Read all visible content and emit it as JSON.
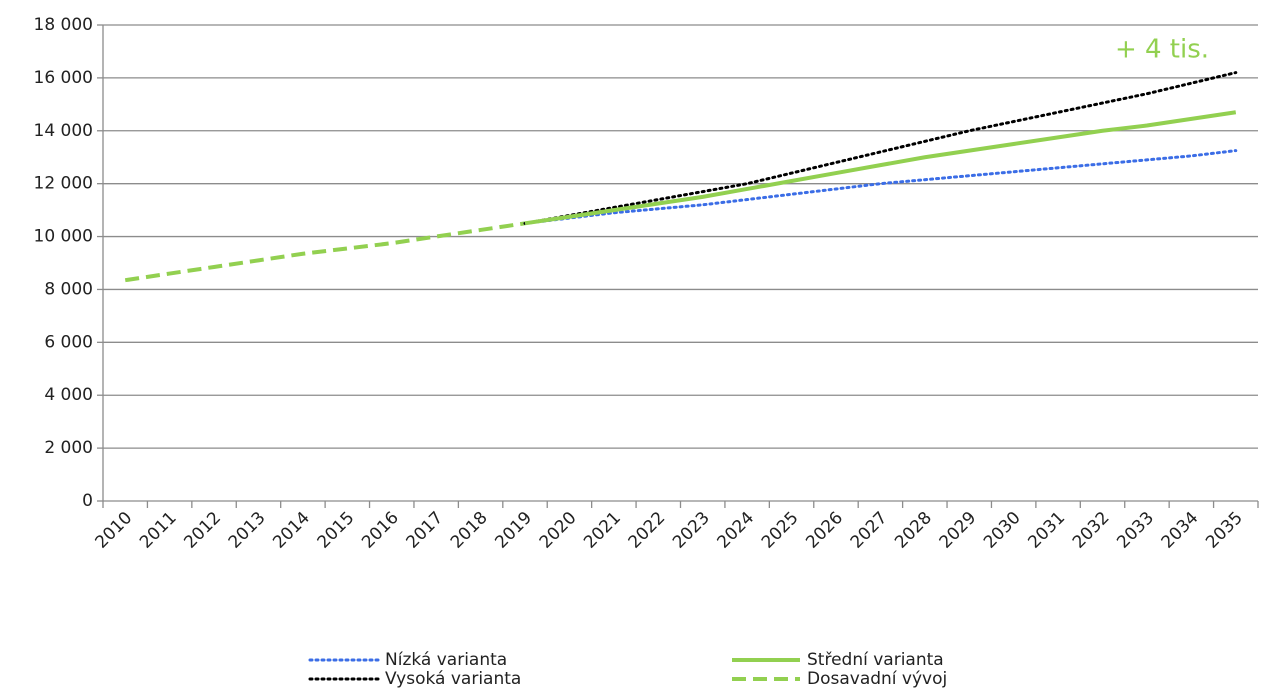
{
  "chart_data": {
    "type": "line",
    "categories": [
      "2010",
      "2011",
      "2012",
      "2013",
      "2014",
      "2015",
      "2016",
      "2017",
      "2018",
      "2019",
      "2020",
      "2021",
      "2022",
      "2023",
      "2024",
      "2025",
      "2026",
      "2027",
      "2028",
      "2029",
      "2030",
      "2031",
      "2032",
      "2033",
      "2034",
      "2035"
    ],
    "series": [
      {
        "name": "Nízká varianta",
        "color": "#3b6de6",
        "style": "dotted",
        "values": [
          null,
          null,
          null,
          null,
          null,
          null,
          null,
          null,
          null,
          10500,
          10700,
          10900,
          11050,
          11200,
          11400,
          11600,
          11800,
          12000,
          12150,
          12300,
          12450,
          12600,
          12750,
          12900,
          13050,
          13250
        ]
      },
      {
        "name": "Střední varianta",
        "color": "#92d050",
        "style": "solid",
        "values": [
          null,
          null,
          null,
          null,
          null,
          null,
          null,
          null,
          null,
          10500,
          10750,
          11000,
          11250,
          11500,
          11800,
          12100,
          12400,
          12700,
          13000,
          13250,
          13500,
          13750,
          14000,
          14200,
          14450,
          14700
        ]
      },
      {
        "name": "Vysoká varianta",
        "color": "#000000",
        "style": "dotted",
        "values": [
          null,
          null,
          null,
          null,
          null,
          null,
          null,
          null,
          null,
          10500,
          10800,
          11100,
          11400,
          11700,
          12000,
          12400,
          12800,
          13200,
          13600,
          14000,
          14350,
          14700,
          15050,
          15400,
          15800,
          16200
        ]
      },
      {
        "name": "Dosavadní vývoj",
        "color": "#92d050",
        "style": "dashed",
        "values": [
          8350,
          8600,
          8850,
          9100,
          9350,
          9550,
          9750,
          10000,
          10250,
          10500,
          null,
          null,
          null,
          null,
          null,
          null,
          null,
          null,
          null,
          null,
          null,
          null,
          null,
          null,
          null,
          null
        ]
      }
    ],
    "annotation": "+ 4 tis.",
    "ylim": [
      0,
      18000
    ],
    "yticks": [
      0,
      {
        "value": 2000,
        "label": "2 000"
      },
      {
        "value": 4000,
        "label": "4 000"
      },
      {
        "value": 6000,
        "label": "6 000"
      },
      {
        "value": 8000,
        "label": "8 000"
      },
      {
        "value": 10000,
        "label": "10 000"
      },
      {
        "value": 12000,
        "label": "12 000"
      },
      {
        "value": 14000,
        "label": "14 000"
      },
      {
        "value": 16000,
        "label": "16 000"
      },
      {
        "value": 18000,
        "label": "18 000"
      }
    ],
    "grid": true
  }
}
